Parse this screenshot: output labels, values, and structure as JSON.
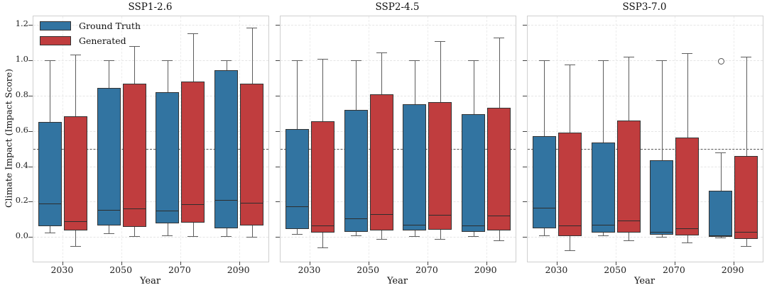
{
  "chart_data": {
    "type": "box",
    "ylabel": "Climate Impact (Impact Score)",
    "xlabel": "Year",
    "categories": [
      "2030",
      "2050",
      "2070",
      "2090"
    ],
    "yticks": [
      0.0,
      0.2,
      0.4,
      0.6,
      0.8,
      1.0,
      1.2
    ],
    "ylim": [
      -0.14,
      1.25
    ],
    "reference_line": 0.5,
    "grid": true,
    "legend": {
      "position": "upper-left-first-panel",
      "items": [
        {
          "label": "Ground Truth",
          "color": "#3274A1"
        },
        {
          "label": "Generated",
          "color": "#C03D3E"
        }
      ]
    },
    "colors": {
      "ground_truth": "#3274A1",
      "generated": "#C03D3E",
      "box_edge": "#333333",
      "whisker": "#5d5d5d",
      "refline": "#555555"
    },
    "panels": [
      {
        "title": "SSP1-2.6",
        "series": [
          {
            "name": "Ground Truth",
            "color": "#3274A1",
            "boxes": [
              {
                "category": "2030",
                "low": 0.025,
                "q1": 0.06,
                "median": 0.19,
                "q3": 0.65,
                "high": 1.0,
                "outliers": []
              },
              {
                "category": "2050",
                "low": 0.02,
                "q1": 0.065,
                "median": 0.155,
                "q3": 0.845,
                "high": 1.0,
                "outliers": []
              },
              {
                "category": "2070",
                "low": 0.01,
                "q1": 0.075,
                "median": 0.15,
                "q3": 0.82,
                "high": 1.0,
                "outliers": []
              },
              {
                "category": "2090",
                "low": 0.005,
                "q1": 0.05,
                "median": 0.21,
                "q3": 0.945,
                "high": 1.0,
                "outliers": []
              }
            ]
          },
          {
            "name": "Generated",
            "color": "#C03D3E",
            "boxes": [
              {
                "category": "2030",
                "low": -0.05,
                "q1": 0.035,
                "median": 0.09,
                "q3": 0.685,
                "high": 1.035,
                "outliers": []
              },
              {
                "category": "2050",
                "low": 0.005,
                "q1": 0.055,
                "median": 0.16,
                "q3": 0.87,
                "high": 1.08,
                "outliers": []
              },
              {
                "category": "2070",
                "low": 0.005,
                "q1": 0.08,
                "median": 0.185,
                "q3": 0.88,
                "high": 1.155,
                "outliers": []
              },
              {
                "category": "2090",
                "low": 0.0,
                "q1": 0.065,
                "median": 0.195,
                "q3": 0.87,
                "high": 1.185,
                "outliers": []
              }
            ]
          }
        ]
      },
      {
        "title": "SSP2-4.5",
        "series": [
          {
            "name": "Ground Truth",
            "color": "#3274A1",
            "boxes": [
              {
                "category": "2030",
                "low": 0.015,
                "q1": 0.045,
                "median": 0.175,
                "q3": 0.61,
                "high": 1.0,
                "outliers": []
              },
              {
                "category": "2050",
                "low": 0.01,
                "q1": 0.03,
                "median": 0.105,
                "q3": 0.72,
                "high": 1.0,
                "outliers": []
              },
              {
                "category": "2070",
                "low": 0.005,
                "q1": 0.035,
                "median": 0.07,
                "q3": 0.75,
                "high": 1.0,
                "outliers": []
              },
              {
                "category": "2090",
                "low": 0.005,
                "q1": 0.03,
                "median": 0.065,
                "q3": 0.695,
                "high": 1.0,
                "outliers": []
              }
            ]
          },
          {
            "name": "Generated",
            "color": "#C03D3E",
            "boxes": [
              {
                "category": "2030",
                "low": -0.06,
                "q1": 0.025,
                "median": 0.065,
                "q3": 0.655,
                "high": 1.01,
                "outliers": []
              },
              {
                "category": "2050",
                "low": -0.01,
                "q1": 0.035,
                "median": 0.13,
                "q3": 0.81,
                "high": 1.045,
                "outliers": []
              },
              {
                "category": "2070",
                "low": -0.01,
                "q1": 0.04,
                "median": 0.125,
                "q3": 0.765,
                "high": 1.11,
                "outliers": []
              },
              {
                "category": "2090",
                "low": -0.02,
                "q1": 0.035,
                "median": 0.12,
                "q3": 0.73,
                "high": 1.13,
                "outliers": []
              }
            ]
          }
        ]
      },
      {
        "title": "SSP3-7.0",
        "series": [
          {
            "name": "Ground Truth",
            "color": "#3274A1",
            "boxes": [
              {
                "category": "2030",
                "low": 0.01,
                "q1": 0.05,
                "median": 0.165,
                "q3": 0.57,
                "high": 1.0,
                "outliers": []
              },
              {
                "category": "2050",
                "low": 0.01,
                "q1": 0.025,
                "median": 0.07,
                "q3": 0.535,
                "high": 1.0,
                "outliers": []
              },
              {
                "category": "2070",
                "low": 0.0,
                "q1": 0.012,
                "median": 0.03,
                "q3": 0.435,
                "high": 1.0,
                "outliers": []
              },
              {
                "category": "2090",
                "low": -0.005,
                "q1": 0.0,
                "median": 0.008,
                "q3": 0.26,
                "high": 0.48,
                "outliers": [
                  1.0
                ]
              }
            ]
          },
          {
            "name": "Generated",
            "color": "#C03D3E",
            "boxes": [
              {
                "category": "2030",
                "low": -0.075,
                "q1": 0.005,
                "median": 0.065,
                "q3": 0.59,
                "high": 0.975,
                "outliers": []
              },
              {
                "category": "2050",
                "low": -0.02,
                "q1": 0.025,
                "median": 0.095,
                "q3": 0.66,
                "high": 1.02,
                "outliers": []
              },
              {
                "category": "2070",
                "low": -0.03,
                "q1": 0.01,
                "median": 0.05,
                "q3": 0.565,
                "high": 1.04,
                "outliers": []
              },
              {
                "category": "2090",
                "low": -0.05,
                "q1": -0.01,
                "median": 0.03,
                "q3": 0.46,
                "high": 1.02,
                "outliers": []
              }
            ]
          }
        ]
      }
    ]
  }
}
